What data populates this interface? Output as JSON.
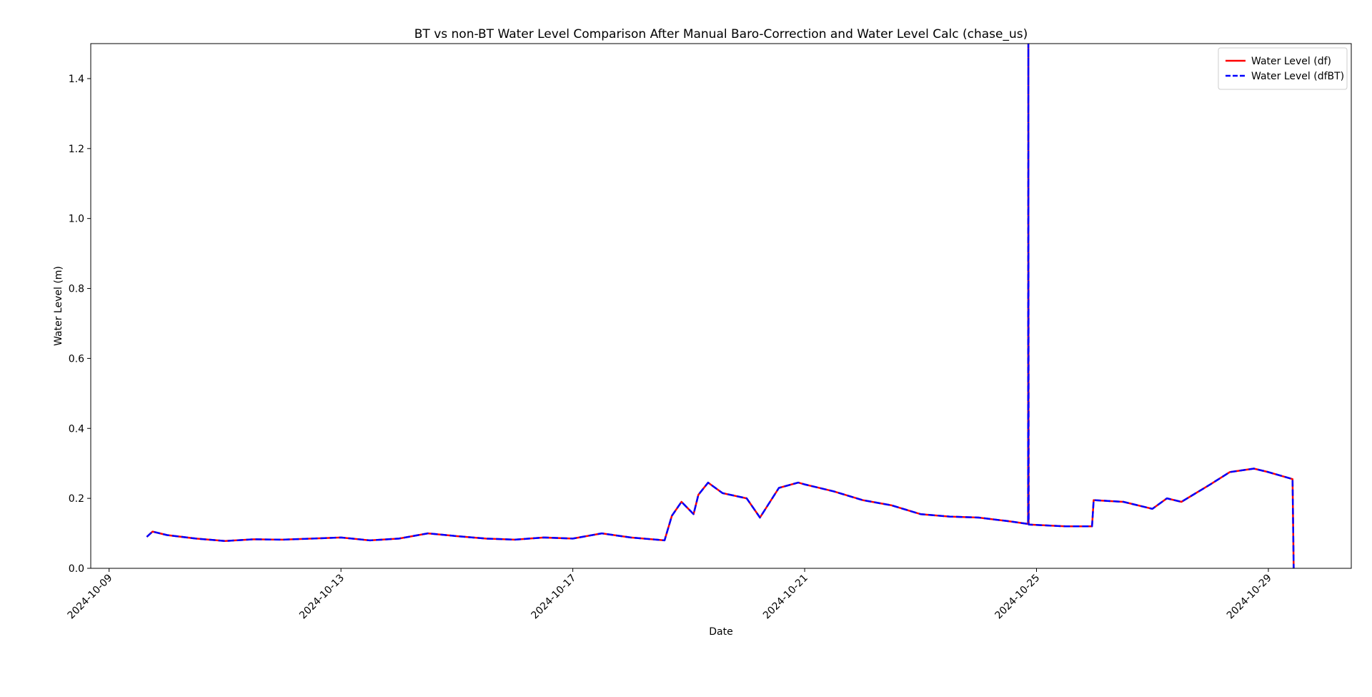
{
  "chart_data": {
    "type": "line",
    "title": "BT vs non-BT Water Level Comparison After Manual Baro-Correction and Water Level Calc (chase_us)",
    "x_label": "Date",
    "y_label": "Water Level (m)",
    "x": [
      "2024-10-09T15:36",
      "2024-10-09T18:00",
      "2024-10-10T00:00",
      "2024-10-10T12:00",
      "2024-10-11T00:00",
      "2024-10-11T12:00",
      "2024-10-12T00:00",
      "2024-10-12T12:00",
      "2024-10-13T00:00",
      "2024-10-13T12:00",
      "2024-10-14T00:00",
      "2024-10-14T12:00",
      "2024-10-15T00:00",
      "2024-10-15T12:00",
      "2024-10-16T00:00",
      "2024-10-16T12:00",
      "2024-10-17T00:00",
      "2024-10-17T12:00",
      "2024-10-18T00:00",
      "2024-10-18T14:00",
      "2024-10-18T17:00",
      "2024-10-18T21:00",
      "2024-10-19T02:00",
      "2024-10-19T04:00",
      "2024-10-19T08:00",
      "2024-10-19T14:00",
      "2024-10-20T00:00",
      "2024-10-20T05:30",
      "2024-10-20T13:20",
      "2024-10-20T21:20",
      "2024-10-21T00:00",
      "2024-10-21T12:00",
      "2024-10-22T00:00",
      "2024-10-22T12:00",
      "2024-10-23T00:00",
      "2024-10-23T12:00",
      "2024-10-24T00:00",
      "2024-10-24T12:00",
      "2024-10-24T20:30",
      "2024-10-24T20:38",
      "2024-10-24T20:45",
      "2024-10-25T12:00",
      "2024-10-25T23:00",
      "2024-10-25T23:40",
      "2024-10-26T12:00",
      "2024-10-27T00:00",
      "2024-10-27T06:00",
      "2024-10-27T12:00",
      "2024-10-28T00:00",
      "2024-10-28T08:00",
      "2024-10-28T18:00",
      "2024-10-29T00:00",
      "2024-10-29T10:00",
      "2024-10-29T10:30"
    ],
    "series": [
      {
        "name": "Water Level (df)",
        "color": "#ff0000",
        "dash": false,
        "values": [
          0.09,
          0.105,
          0.095,
          0.085,
          0.078,
          0.083,
          0.082,
          0.085,
          0.088,
          0.08,
          0.085,
          0.1,
          0.092,
          0.085,
          0.082,
          0.088,
          0.085,
          0.1,
          0.088,
          0.08,
          0.15,
          0.19,
          0.155,
          0.21,
          0.245,
          0.215,
          0.2,
          0.145,
          0.23,
          0.245,
          0.24,
          0.22,
          0.195,
          0.18,
          0.155,
          0.148,
          0.145,
          0.135,
          0.127,
          1.5,
          0.125,
          0.12,
          0.12,
          0.195,
          0.19,
          0.17,
          0.2,
          0.19,
          0.24,
          0.275,
          0.285,
          0.275,
          0.255,
          0
        ]
      },
      {
        "name": "Water Level (dfBT)",
        "color": "#0000ff",
        "dash": true,
        "values": [
          0.09,
          0.105,
          0.095,
          0.085,
          0.078,
          0.083,
          0.082,
          0.085,
          0.088,
          0.08,
          0.085,
          0.1,
          0.092,
          0.085,
          0.082,
          0.088,
          0.085,
          0.1,
          0.088,
          0.08,
          0.15,
          0.19,
          0.155,
          0.21,
          0.245,
          0.215,
          0.2,
          0.145,
          0.23,
          0.245,
          0.24,
          0.22,
          0.195,
          0.18,
          0.155,
          0.148,
          0.145,
          0.135,
          0.127,
          1.5,
          0.125,
          0.12,
          0.12,
          0.195,
          0.19,
          0.17,
          0.2,
          0.19,
          0.24,
          0.275,
          0.285,
          0.275,
          0.255,
          0
        ]
      }
    ],
    "xlim": [
      "2024-10-08T16:24",
      "2024-10-30T10:20"
    ],
    "xticks": [
      "2024-10-09",
      "2024-10-13",
      "2024-10-17",
      "2024-10-21",
      "2024-10-25",
      "2024-10-29"
    ],
    "ylim": [
      0,
      1.5
    ],
    "yticks": [
      {
        "value": 0,
        "label": "0.0"
      },
      {
        "value": 0.2,
        "label": "0.2"
      },
      {
        "value": 0.4,
        "label": "0.4"
      },
      {
        "value": 0.6,
        "label": "0.6"
      },
      {
        "value": 0.8,
        "label": "0.8"
      },
      {
        "value": 1,
        "label": "1.0"
      },
      {
        "value": 1.2,
        "label": "1.2"
      },
      {
        "value": 1.4,
        "label": "1.4"
      }
    ],
    "legend": "upper right",
    "grid": false
  }
}
